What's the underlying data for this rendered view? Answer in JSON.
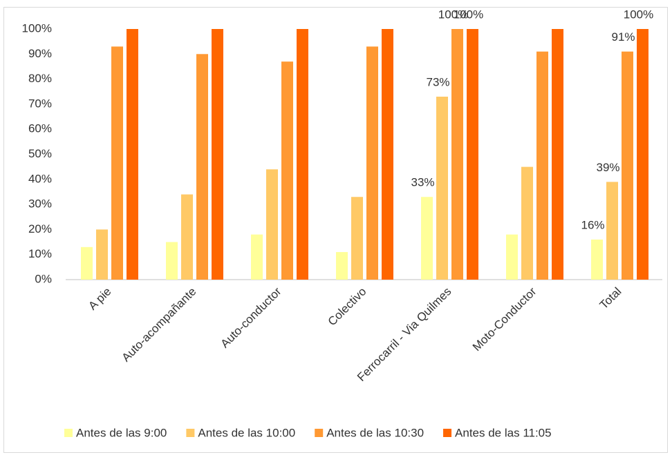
{
  "chart_data": {
    "type": "bar",
    "categories": [
      "A pie",
      "Auto-acompañante",
      "Auto-conductor",
      "Colectivo",
      "Ferrocarril - Via Quilmes",
      "Moto-Conductor",
      "Total"
    ],
    "series": [
      {
        "name": "Antes de las 9:00",
        "color": "#ffff99",
        "values": [
          13,
          15,
          18,
          11,
          33,
          18,
          16
        ],
        "value_labels": [
          null,
          null,
          null,
          null,
          "33%",
          null,
          "16%"
        ]
      },
      {
        "name": "Antes de las 10:00",
        "color": "#ffc966",
        "values": [
          20,
          34,
          44,
          33,
          73,
          45,
          39
        ],
        "value_labels": [
          null,
          null,
          null,
          null,
          "73%",
          null,
          "39%"
        ]
      },
      {
        "name": "Antes de las 10:30",
        "color": "#ff9933",
        "values": [
          93,
          90,
          87,
          93,
          100,
          91,
          91
        ],
        "value_labels": [
          null,
          null,
          null,
          null,
          "100%",
          null,
          "91%"
        ]
      },
      {
        "name": "Antes de las 11:05",
        "color": "#ff6600",
        "values": [
          100,
          100,
          100,
          100,
          100,
          100,
          100
        ],
        "value_labels": [
          null,
          null,
          null,
          null,
          "100%",
          null,
          "100%"
        ]
      }
    ],
    "ylim": [
      0,
      100
    ],
    "yticks": [
      {
        "value": 0,
        "label": "0%"
      },
      {
        "value": 10,
        "label": "10%"
      },
      {
        "value": 20,
        "label": "20%"
      },
      {
        "value": 30,
        "label": "30%"
      },
      {
        "value": 40,
        "label": "40%"
      },
      {
        "value": 50,
        "label": "50%"
      },
      {
        "value": 60,
        "label": "60%"
      },
      {
        "value": 70,
        "label": "70%"
      },
      {
        "value": 80,
        "label": "80%"
      },
      {
        "value": 90,
        "label": "90%"
      },
      {
        "value": 100,
        "label": "100%"
      }
    ],
    "grid": false,
    "legend": "bottom"
  }
}
